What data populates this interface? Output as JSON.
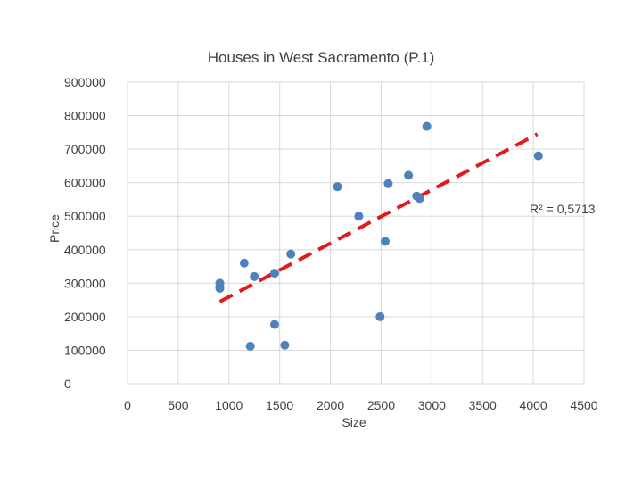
{
  "chart_data": {
    "type": "scatter",
    "title": "Houses in West Sacramento (P.1)",
    "xlabel": "Size",
    "ylabel": "Price",
    "xlim": [
      0,
      4500
    ],
    "ylim": [
      0,
      900000
    ],
    "x_ticks": [
      "0",
      "500",
      "1000",
      "1500",
      "2000",
      "2500",
      "3000",
      "3500",
      "4000",
      "4500"
    ],
    "y_ticks": [
      "0",
      "100000",
      "200000",
      "300000",
      "400000",
      "500000",
      "600000",
      "700000",
      "800000",
      "900000"
    ],
    "grid": true,
    "marker_color": "#4f81bd",
    "trendline": {
      "type": "linear",
      "color": "#e31a1c",
      "x": [
        910,
        4040
      ],
      "y": [
        245000,
        745000
      ],
      "r_squared_label": "R² = 0,5713"
    },
    "points": [
      {
        "x": 910,
        "y": 300000
      },
      {
        "x": 910,
        "y": 290000
      },
      {
        "x": 910,
        "y": 285000
      },
      {
        "x": 1150,
        "y": 360000
      },
      {
        "x": 1210,
        "y": 112000
      },
      {
        "x": 1250,
        "y": 320000
      },
      {
        "x": 1450,
        "y": 330000
      },
      {
        "x": 1450,
        "y": 177000
      },
      {
        "x": 1550,
        "y": 115000
      },
      {
        "x": 1610,
        "y": 387000
      },
      {
        "x": 2070,
        "y": 588000
      },
      {
        "x": 2280,
        "y": 500000
      },
      {
        "x": 2490,
        "y": 200000
      },
      {
        "x": 2540,
        "y": 425000
      },
      {
        "x": 2570,
        "y": 597000
      },
      {
        "x": 2770,
        "y": 622000
      },
      {
        "x": 2850,
        "y": 560000
      },
      {
        "x": 2880,
        "y": 553000
      },
      {
        "x": 2950,
        "y": 768000
      },
      {
        "x": 4050,
        "y": 680000
      }
    ]
  }
}
